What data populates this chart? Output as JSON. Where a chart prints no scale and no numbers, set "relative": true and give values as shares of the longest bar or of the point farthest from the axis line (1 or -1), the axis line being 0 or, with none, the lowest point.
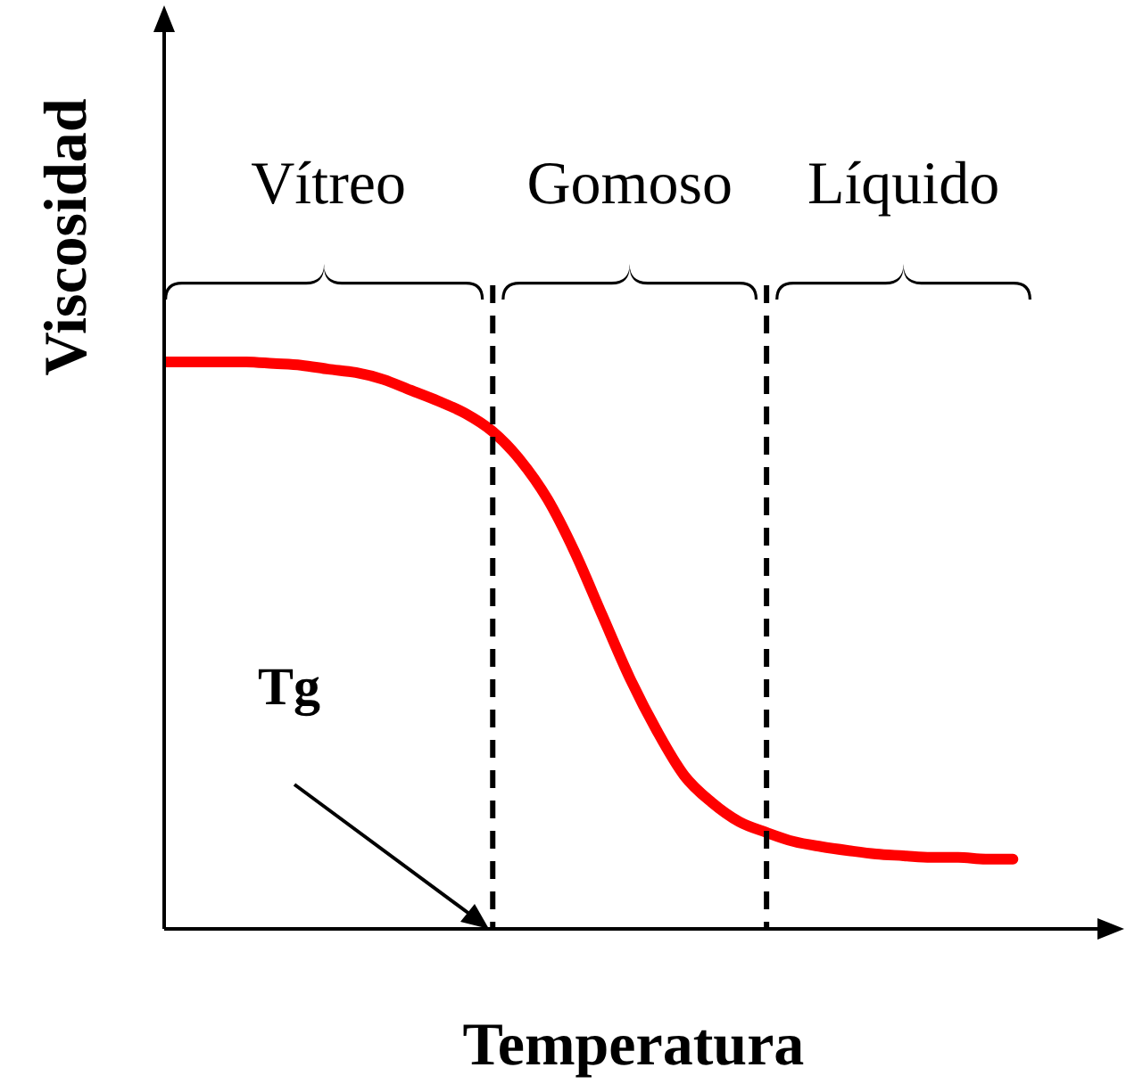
{
  "chart_data": {
    "type": "line",
    "xlabel": "Temperatura",
    "ylabel": "Viscosidad",
    "relative": true,
    "marker": "none",
    "line_style": "solid",
    "color": "#ff0000",
    "categories": [
      null,
      null,
      null,
      null,
      null,
      null,
      null,
      null,
      null,
      null,
      null,
      null,
      null,
      null,
      null,
      null,
      null,
      null,
      null,
      null,
      null,
      null,
      null,
      null,
      null,
      null,
      null,
      null,
      null,
      null,
      null,
      null,
      null
    ],
    "values": [
      1,
      1,
      1,
      1,
      0.997,
      0.994,
      0.987,
      0.981,
      0.969,
      0.95,
      0.931,
      0.909,
      0.877,
      0.827,
      0.758,
      0.664,
      0.553,
      0.443,
      0.349,
      0.27,
      0.223,
      0.189,
      0.17,
      0.154,
      0.145,
      0.138,
      0.132,
      0.129,
      0.126,
      0.126,
      0.123,
      0.123,
      null
    ],
    "annotations": [
      "Vítreo",
      "Gomoso",
      "Líquido",
      "Tg"
    ]
  }
}
